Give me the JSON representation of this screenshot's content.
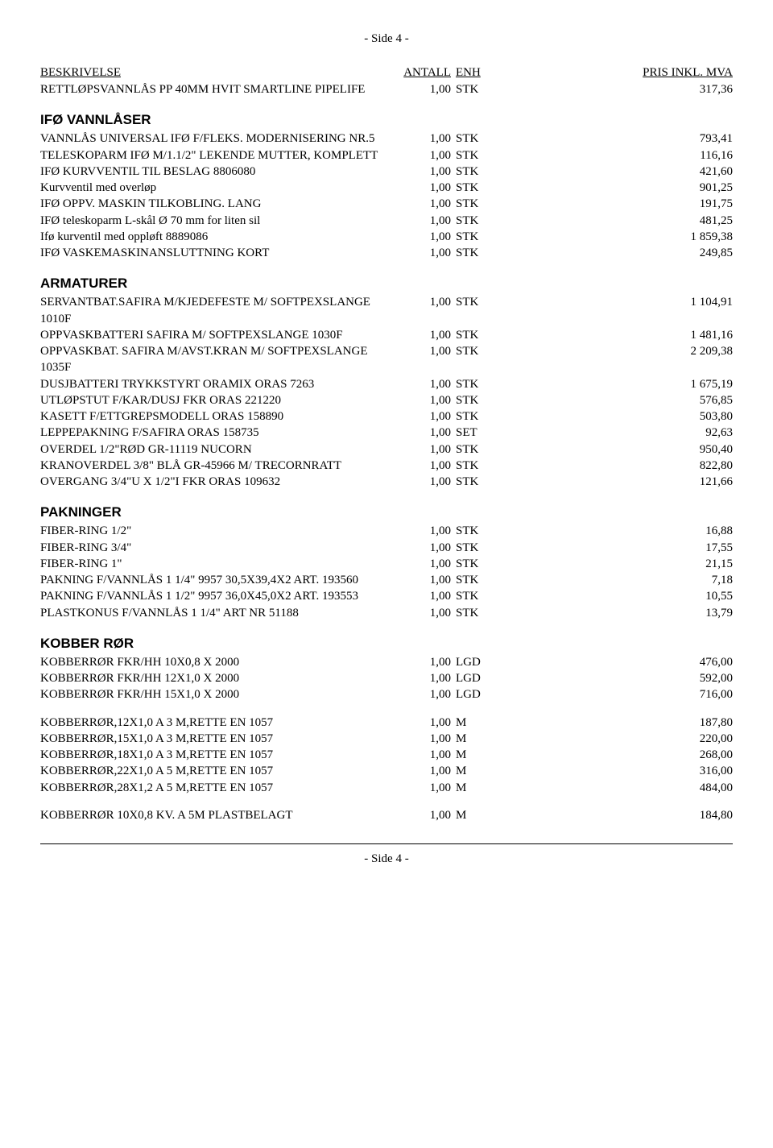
{
  "page_header": "- Side 4 -",
  "page_footer": "- Side 4 -",
  "columns": {
    "desc": "BESKRIVELSE",
    "qty": "ANTALL",
    "unit": "ENH",
    "price": "PRIS INKL. MVA"
  },
  "first_rows": [
    {
      "desc": "RETTLØPSVANNLÅS PP 40MM HVIT SMARTLINE PIPELIFE",
      "qty": "1,00",
      "unit": "STK",
      "price": "317,36"
    }
  ],
  "sections": [
    {
      "title": "IFØ VANNLÅSER",
      "rows": [
        {
          "desc": "VANNLÅS UNIVERSAL IFØ F/FLEKS. MODERNISERING NR.5",
          "qty": "1,00",
          "unit": "STK",
          "price": "793,41"
        },
        {
          "desc": "TELESKOPARM IFØ M/1.1/2\" LEKENDE MUTTER, KOMPLETT",
          "qty": "1,00",
          "unit": "STK",
          "price": "116,16"
        },
        {
          "desc": "IFØ KURVVENTIL TIL BESLAG 8806080",
          "qty": "1,00",
          "unit": "STK",
          "price": "421,60"
        },
        {
          "desc": "Kurvventil med overløp",
          "qty": "1,00",
          "unit": "STK",
          "price": "901,25"
        },
        {
          "desc": "IFØ OPPV. MASKIN TILKOBLING. LANG",
          "qty": "1,00",
          "unit": "STK",
          "price": "191,75"
        },
        {
          "desc": "IFØ teleskoparm L-skål Ø 70 mm for liten sil",
          "qty": "1,00",
          "unit": "STK",
          "price": "481,25"
        },
        {
          "desc": "Ifø kurventil med oppløft 8889086",
          "qty": "1,00",
          "unit": "STK",
          "price": "1 859,38"
        },
        {
          "desc": "IFØ VASKEMASKINANSLUTTNING KORT",
          "qty": "1,00",
          "unit": "STK",
          "price": "249,85"
        }
      ]
    },
    {
      "title": "ARMATURER",
      "rows": [
        {
          "desc": "SERVANTBAT.SAFIRA M/KJEDEFESTE M/ SOFTPEXSLANGE 1010F",
          "qty": "1,00",
          "unit": "STK",
          "price": "1 104,91"
        },
        {
          "desc": "OPPVASKBATTERI SAFIRA M/ SOFTPEXSLANGE 1030F",
          "qty": "1,00",
          "unit": "STK",
          "price": "1 481,16"
        },
        {
          "desc": "OPPVASKBAT. SAFIRA M/AVST.KRAN M/ SOFTPEXSLANGE 1035F",
          "qty": "1,00",
          "unit": "STK",
          "price": "2 209,38"
        },
        {
          "desc": "DUSJBATTERI TRYKKSTYRT ORAMIX ORAS 7263",
          "qty": "1,00",
          "unit": "STK",
          "price": "1 675,19"
        },
        {
          "desc": "UTLØPSTUT F/KAR/DUSJ    FKR ORAS 221220",
          "qty": "1,00",
          "unit": "STK",
          "price": "576,85"
        },
        {
          "desc": "KASETT F/ETTGREPSMODELL ORAS 158890",
          "qty": "1,00",
          "unit": "STK",
          "price": "503,80"
        },
        {
          "desc": "LEPPEPAKNING F/SAFIRA ORAS 158735",
          "qty": "1,00",
          "unit": "SET",
          "price": "92,63"
        },
        {
          "desc": "OVERDEL   1/2\"RØD     GR-11119 NUCORN",
          "qty": "1,00",
          "unit": "STK",
          "price": "950,40"
        },
        {
          "desc": "KRANOVERDEL 3/8\" BLÅ  GR-45966 M/ TRECORNRATT",
          "qty": "1,00",
          "unit": "STK",
          "price": "822,80"
        },
        {
          "desc": "OVERGANG 3/4\"U X 1/2\"I  FKR ORAS 109632",
          "qty": "1,00",
          "unit": "STK",
          "price": "121,66"
        }
      ]
    },
    {
      "title": "PAKNINGER",
      "rows": [
        {
          "desc": "FIBER-RING 1/2\"",
          "qty": "1,00",
          "unit": "STK",
          "price": "16,88"
        },
        {
          "desc": "FIBER-RING 3/4\"",
          "qty": "1,00",
          "unit": "STK",
          "price": "17,55"
        },
        {
          "desc": "FIBER-RING 1\"",
          "qty": "1,00",
          "unit": "STK",
          "price": "21,15"
        },
        {
          "desc": "PAKNING F/VANNLÅS 1 1/4\"  9957 30,5X39,4X2 ART. 193560",
          "qty": "1,00",
          "unit": "STK",
          "price": "7,18"
        },
        {
          "desc": "PAKNING F/VANNLÅS 1 1/2\"  9957 36,0X45,0X2 ART. 193553",
          "qty": "1,00",
          "unit": "STK",
          "price": "10,55"
        },
        {
          "desc": "PLASTKONUS F/VANNLÅS 1 1/4\" ART NR 51188",
          "qty": "1,00",
          "unit": "STK",
          "price": "13,79"
        }
      ]
    },
    {
      "title": "KOBBER RØR",
      "rows": [
        {
          "desc": "KOBBERRØR FKR/HH 10X0,8 X 2000",
          "qty": "1,00",
          "unit": "LGD",
          "price": "476,00"
        },
        {
          "desc": "KOBBERRØR FKR/HH 12X1,0 X 2000",
          "qty": "1,00",
          "unit": "LGD",
          "price": "592,00"
        },
        {
          "desc": "KOBBERRØR FKR/HH 15X1,0 X 2000",
          "qty": "1,00",
          "unit": "LGD",
          "price": "716,00"
        },
        {
          "spacer": true
        },
        {
          "desc": "KOBBERRØR,12X1,0 A 3 M,RETTE EN 1057",
          "qty": "1,00",
          "unit": "M",
          "price": "187,80"
        },
        {
          "desc": "KOBBERRØR,15X1,0 A 3 M,RETTE EN 1057",
          "qty": "1,00",
          "unit": "M",
          "price": "220,00"
        },
        {
          "desc": "KOBBERRØR,18X1,0 A 3 M,RETTE EN 1057",
          "qty": "1,00",
          "unit": "M",
          "price": "268,00"
        },
        {
          "desc": "KOBBERRØR,22X1,0 A 5 M,RETTE EN 1057",
          "qty": "1,00",
          "unit": "M",
          "price": "316,00"
        },
        {
          "desc": "KOBBERRØR,28X1,2 A 5 M,RETTE EN 1057",
          "qty": "1,00",
          "unit": "M",
          "price": "484,00"
        },
        {
          "spacer": true
        },
        {
          "desc": "KOBBERRØR 10X0,8 KV. A 5M PLASTBELAGT",
          "qty": "1,00",
          "unit": "M",
          "price": "184,80"
        }
      ]
    }
  ]
}
